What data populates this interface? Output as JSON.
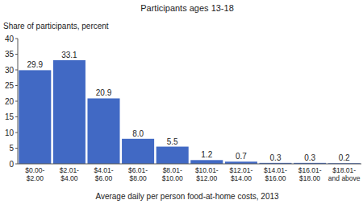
{
  "chart_data": {
    "type": "bar",
    "title": "Participants ages 13-18",
    "y_label": "Share of participants, percent",
    "x_label": "Average daily per person food-at-home costs, 2013",
    "categories": [
      "$0.00-\n$2.00",
      "$2.01-\n$4.00",
      "$4.01-\n$6.00",
      "$6.01-\n$8.00",
      "$8.01-\n$10.00",
      "$10.01-\n$12.00",
      "$12.01-\n$14.00",
      "$14.01-\n$16.00",
      "$16.01-\n$18.00",
      "$18.01-\nand above"
    ],
    "values": [
      29.9,
      33.1,
      20.9,
      8.0,
      5.5,
      1.2,
      0.7,
      0.3,
      0.3,
      0.2
    ],
    "value_labels": [
      "29.9",
      "33.1",
      "20.9",
      "8.0",
      "5.5",
      "1.2",
      "0.7",
      "0.3",
      "0.3",
      "0.2"
    ],
    "color": "#4169c4",
    "ylim": [
      0,
      40
    ],
    "yticks": [
      0,
      5,
      10,
      15,
      20,
      25,
      30,
      35,
      40
    ],
    "grid": false,
    "data_labels": true
  }
}
